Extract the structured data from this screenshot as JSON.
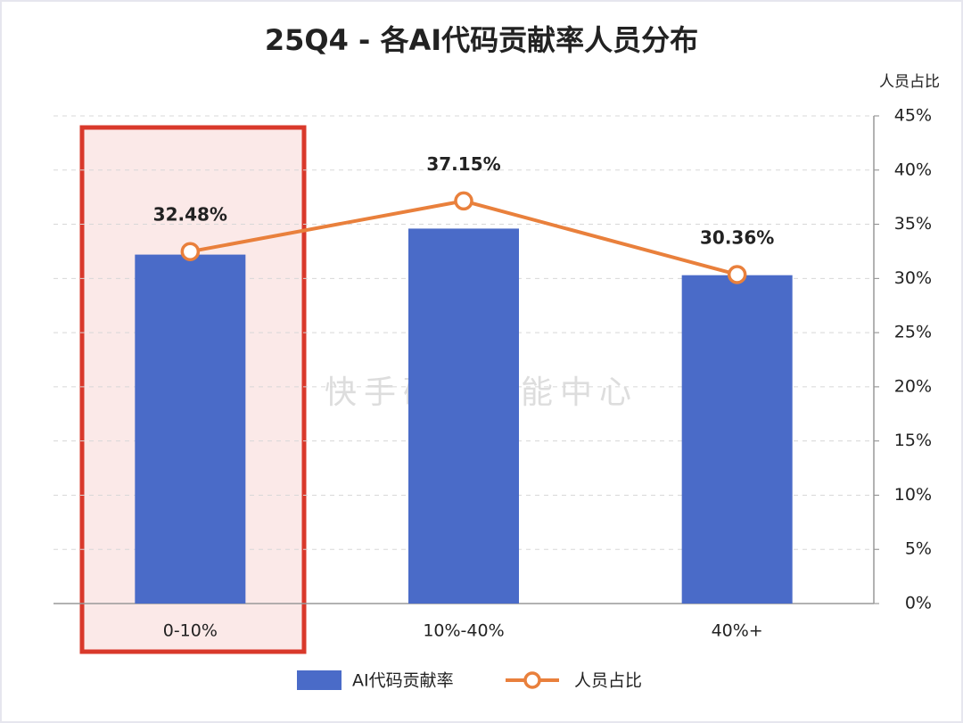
{
  "chart_data": {
    "type": "combo",
    "title": "25Q4 - 各AI代码贡献率人员分布",
    "y_axis_title": "人员占比",
    "y_axis_side": "right",
    "watermark": "快手研发效能中心",
    "categories": [
      "0-10%",
      "10%-40%",
      "40%+"
    ],
    "series": [
      {
        "name": "AI代码贡献率",
        "type": "bar",
        "color": "#4a6bc8",
        "values": [
          32.2,
          34.6,
          30.3
        ]
      },
      {
        "name": "人员占比",
        "type": "line",
        "color": "#e9803c",
        "values": [
          32.48,
          37.15,
          30.36
        ],
        "value_labels": [
          "32.48%",
          "37.15%",
          "30.36%"
        ]
      }
    ],
    "ylim": [
      0,
      45
    ],
    "yticks": [
      {
        "value": 0,
        "label": "0%"
      },
      {
        "value": 5,
        "label": "5%"
      },
      {
        "value": 10,
        "label": "10%"
      },
      {
        "value": 15,
        "label": "15%"
      },
      {
        "value": 20,
        "label": "20%"
      },
      {
        "value": 25,
        "label": "25%"
      },
      {
        "value": 30,
        "label": "30%"
      },
      {
        "value": 35,
        "label": "35%"
      },
      {
        "value": 40,
        "label": "40%"
      },
      {
        "value": 45,
        "label": "45%"
      }
    ],
    "grid": true
  }
}
